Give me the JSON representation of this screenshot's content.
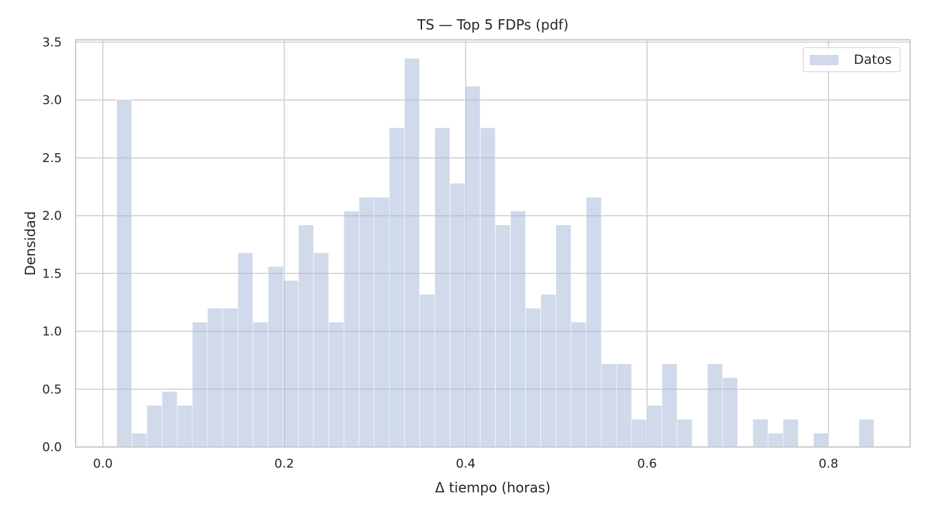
{
  "chart_data": {
    "type": "bar",
    "title": "TS — Top 5 FDPs (pdf)",
    "xlabel": "Δ tiempo (horas)",
    "ylabel": "Densidad",
    "xlim": [
      -0.03,
      0.89
    ],
    "ylim": [
      0,
      3.52
    ],
    "x_ticks": [
      "0.0",
      "0.2",
      "0.4",
      "0.6",
      "0.8"
    ],
    "x_tick_values": [
      0,
      0.2,
      0.4,
      0.6,
      0.8
    ],
    "y_ticks": [
      "0.0",
      "0.5",
      "1.0",
      "1.5",
      "2.0",
      "2.5",
      "3.0",
      "3.5"
    ],
    "y_tick_values": [
      0,
      0.5,
      1.0,
      1.5,
      2.0,
      2.5,
      3.0,
      3.5
    ],
    "grid": true,
    "legend_position": "top-right",
    "bar_color": "#a3b6d8",
    "bar_opacity": 0.5,
    "series": [
      {
        "name": "Datos",
        "bin_edges": [
          0.0152,
          0.0319,
          0.0486,
          0.0653,
          0.082,
          0.0987,
          0.1154,
          0.1321,
          0.1488,
          0.1655,
          0.1822,
          0.1989,
          0.2156,
          0.2323,
          0.249,
          0.2657,
          0.2824,
          0.2991,
          0.3158,
          0.3325,
          0.3492,
          0.3659,
          0.3826,
          0.3993,
          0.416,
          0.4327,
          0.4494,
          0.4661,
          0.4828,
          0.4995,
          0.5162,
          0.5329,
          0.5496,
          0.5663,
          0.583,
          0.5997,
          0.6164,
          0.6331,
          0.6498,
          0.6665,
          0.6832,
          0.6999,
          0.7166,
          0.7333,
          0.75,
          0.7667,
          0.7834,
          0.8001,
          0.8168,
          0.8335,
          0.8502
        ],
        "values": [
          3.0,
          0.12,
          0.36,
          0.48,
          0.36,
          1.08,
          1.2,
          1.2,
          1.68,
          1.08,
          1.56,
          1.44,
          1.92,
          1.68,
          1.08,
          2.04,
          2.16,
          2.16,
          2.76,
          3.36,
          1.32,
          2.76,
          2.28,
          3.12,
          2.76,
          1.92,
          2.04,
          1.2,
          1.32,
          1.92,
          1.08,
          2.16,
          0.72,
          0.72,
          0.24,
          0.36,
          0.72,
          0.24,
          0,
          0.72,
          0.6,
          0,
          0.24,
          0.12,
          0.24,
          0,
          0.12,
          0,
          0,
          0.24
        ]
      }
    ]
  }
}
